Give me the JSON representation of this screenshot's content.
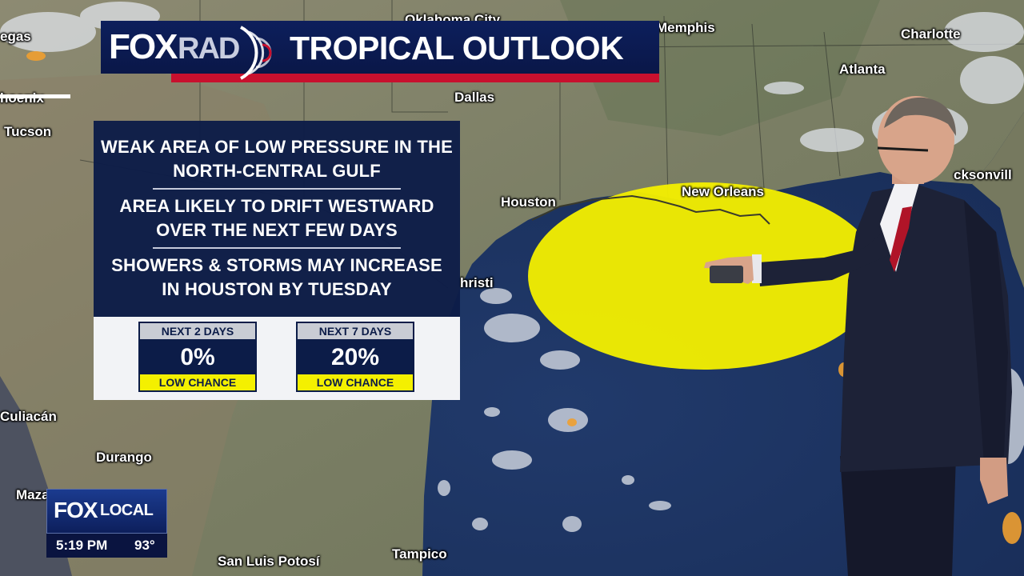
{
  "header": {
    "logo_fox": "FOX",
    "logo_rad": "RAD",
    "title": "TROPICAL OUTLOOK"
  },
  "panel": {
    "line1a": "WEAK AREA OF LOW PRESSURE IN THE",
    "line1b": "NORTH-CENTRAL GULF",
    "line2a": "AREA LIKELY TO DRIFT WESTWARD",
    "line2b": "OVER THE NEXT FEW DAYS",
    "line3a": "SHOWERS & STORMS MAY INCREASE",
    "line3b": "IN HOUSTON BY TUESDAY"
  },
  "chances": [
    {
      "period": "NEXT 2 DAYS",
      "value": "0%",
      "label": "LOW CHANCE"
    },
    {
      "period": "NEXT 7 DAYS",
      "value": "20%",
      "label": "LOW CHANCE"
    }
  ],
  "cities": {
    "vegas": "egas",
    "oklahoma_city": "Oklahoma City",
    "memphis": "Memphis",
    "charlotte": "Charlotte",
    "atlanta": "Atlanta",
    "phoenix": "hoenix",
    "tucson": "Tucson",
    "dallas": "Dallas",
    "houston": "Houston",
    "new_orleans": "New Orleans",
    "jacksonville": "cksonvill",
    "corpus_christi": "hristi",
    "culiacan": "Culiacán",
    "durango": "Durango",
    "mazatlan": "Maza",
    "san_luis_potosi": "San Luis Potosí",
    "tampico": "Tampico"
  },
  "bug": {
    "fox": "FOX",
    "local": "LOCAL",
    "time": "5:19 PM",
    "temp": "93°"
  },
  "colors": {
    "outlook_area": "#f4f000",
    "banner_navy": "#0c1c48",
    "banner_red": "#c8102e"
  }
}
